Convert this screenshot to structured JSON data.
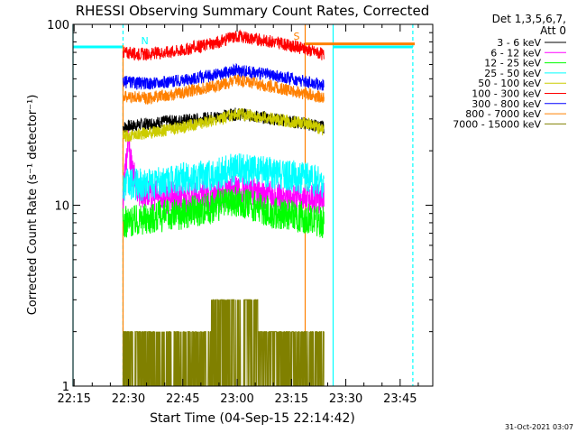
{
  "chart_data": {
    "type": "line",
    "title": "RHESSI Observing Summary Count Rates, Corrected",
    "xlabel": "Start Time (04-Sep-15 22:14:42)",
    "ylabel": "Corrected Count Rate (s⁻¹ detector⁻¹)",
    "yscale": "log",
    "ylim": [
      1,
      100
    ],
    "xlim": [
      "22:14:42",
      "23:54:00"
    ],
    "yticks": [
      {
        "value": 1,
        "label": "1"
      },
      {
        "value": 10,
        "label": "10"
      },
      {
        "value": 100,
        "label": "100"
      }
    ],
    "xticks": [
      {
        "value": "22:15",
        "label": "22:15"
      },
      {
        "value": "22:30",
        "label": "22:30"
      },
      {
        "value": "22:45",
        "label": "22:45"
      },
      {
        "value": "23:00",
        "label": "23:00"
      },
      {
        "value": "23:15",
        "label": "23:15"
      },
      {
        "value": "23:30",
        "label": "23:30"
      },
      {
        "value": "23:45",
        "label": "23:45"
      }
    ],
    "legend_header": [
      "Det 1,3,5,6,7,",
      "Att 0"
    ],
    "legend_position": "right",
    "series": [
      {
        "name": "3 - 6 keV",
        "color": "#000000",
        "times": [
          "22:28:30",
          "22:40",
          "22:50",
          "23:00",
          "23:10",
          "23:20",
          "23:24"
        ],
        "values": [
          27,
          29,
          30,
          32,
          30,
          28,
          27
        ]
      },
      {
        "name": "6 - 12 keV",
        "color": "#ff00ff",
        "times": [
          "22:28:30",
          "22:30",
          "22:31",
          "22:33",
          "22:40",
          "22:50",
          "23:00",
          "23:10",
          "23:20",
          "23:24"
        ],
        "values": [
          11,
          22,
          15,
          12,
          11,
          11,
          12,
          11,
          11,
          11
        ]
      },
      {
        "name": "12 - 25 keV",
        "color": "#00ff00",
        "times": [
          "22:28:30",
          "22:35",
          "22:45",
          "22:55",
          "23:00",
          "23:10",
          "23:20",
          "23:24"
        ],
        "values": [
          8,
          8.5,
          9,
          10,
          10.5,
          9,
          8.5,
          8
        ]
      },
      {
        "name": "25 - 50 keV",
        "color": "#00ffff",
        "times": [
          "22:28:30",
          "22:35",
          "22:45",
          "22:55",
          "23:00",
          "23:10",
          "23:20",
          "23:24"
        ],
        "values": [
          13,
          13,
          14,
          15,
          16,
          15,
          14,
          13
        ]
      },
      {
        "name": "50 - 100 keV",
        "color": "#cccc00",
        "times": [
          "22:28:30",
          "22:35",
          "22:45",
          "22:55",
          "23:00",
          "23:10",
          "23:20",
          "23:24"
        ],
        "values": [
          24,
          25,
          27,
          30,
          32,
          30,
          28,
          26
        ]
      },
      {
        "name": "100 - 300 keV",
        "color": "#ff0000",
        "times": [
          "22:28:30",
          "22:35",
          "22:45",
          "22:55",
          "23:00",
          "23:10",
          "23:20",
          "23:24"
        ],
        "values": [
          70,
          68,
          72,
          80,
          86,
          80,
          72,
          68
        ]
      },
      {
        "name": "300 - 800 keV",
        "color": "#0000ff",
        "times": [
          "22:28:30",
          "22:35",
          "22:45",
          "22:55",
          "23:00",
          "23:10",
          "23:20",
          "23:24"
        ],
        "values": [
          48,
          47,
          49,
          53,
          56,
          52,
          48,
          46
        ]
      },
      {
        "name": "800 - 7000 keV",
        "color": "#ff8000",
        "times": [
          "22:28:30",
          "22:35",
          "22:45",
          "22:55",
          "23:00",
          "23:10",
          "23:20",
          "23:24"
        ],
        "values": [
          40,
          39,
          42,
          46,
          49,
          45,
          41,
          39
        ]
      },
      {
        "name": "7000 - 15000 keV",
        "color": "#808000",
        "times": [
          "22:28:30",
          "22:40",
          "22:50",
          "22:55",
          "23:00",
          "23:05",
          "23:10",
          "23:20",
          "23:24"
        ],
        "values": [
          1.5,
          1.5,
          1.8,
          2.5,
          2.8,
          2.3,
          1.7,
          1.5,
          1.5
        ]
      }
    ],
    "markers": {
      "spacecraft_day_intervals": [
        {
          "start": "22:14:42",
          "end": "22:28:30"
        },
        {
          "start": "23:26:30",
          "end": "23:48:30"
        }
      ],
      "level_value": 75,
      "saa_label": "S",
      "night_label": "N"
    },
    "footer_date": "31-Oct-2021 03:07"
  }
}
